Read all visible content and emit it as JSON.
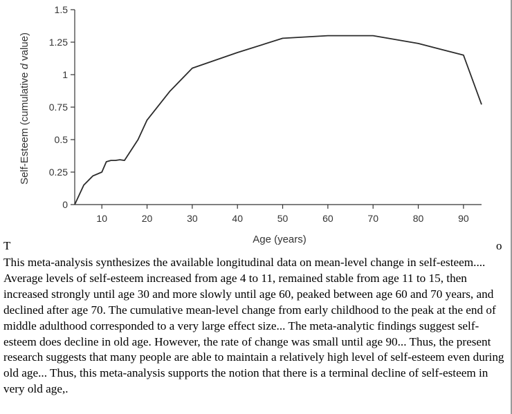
{
  "chart_data": {
    "type": "line",
    "title": "",
    "xlabel": "Age (years)",
    "ylabel": "Self-Esteem (cumulative d value)",
    "x_ticks": [
      10,
      20,
      30,
      40,
      50,
      60,
      70,
      80,
      90
    ],
    "y_ticks": [
      "0",
      "0.25",
      "0.5",
      "0.75",
      "1",
      "1.25",
      "1.5"
    ],
    "xlim": [
      4,
      94
    ],
    "ylim": [
      0,
      1.5
    ],
    "series": [
      {
        "name": "Self-esteem",
        "x": [
          4,
          6,
          8,
          10,
          11,
          12,
          13,
          14,
          15,
          18,
          20,
          25,
          30,
          40,
          50,
          60,
          70,
          80,
          90,
          94
        ],
        "values": [
          0,
          0.15,
          0.22,
          0.25,
          0.33,
          0.34,
          0.34,
          0.345,
          0.34,
          0.5,
          0.65,
          0.87,
          1.05,
          1.17,
          1.28,
          1.3,
          1.3,
          1.24,
          1.15,
          0.77
        ]
      }
    ]
  },
  "stray": {
    "left": "T",
    "right": "o"
  },
  "caption": "This meta-analysis synthesizes the available longitudinal data on mean-level change in self-esteem.... Average levels of self-esteem increased from age 4 to 11, remained stable from age 11 to 15, then increased strongly until age 30 and more slowly until age 60, peaked between age 60 and 70 years, and declined after age 70. The cumulative mean-level change from early childhood to the peak at the end of middle adulthood corresponded to a very large effect size... The meta-analytic findings suggest self-esteem does decline in old age. However, the rate of change was small until age 90... Thus, the present research suggests that many people are able to maintain a relatively high level of self-esteem even during old age... Thus, this meta-analysis supports the notion that there is a terminal decline of self-esteem in very old age,."
}
